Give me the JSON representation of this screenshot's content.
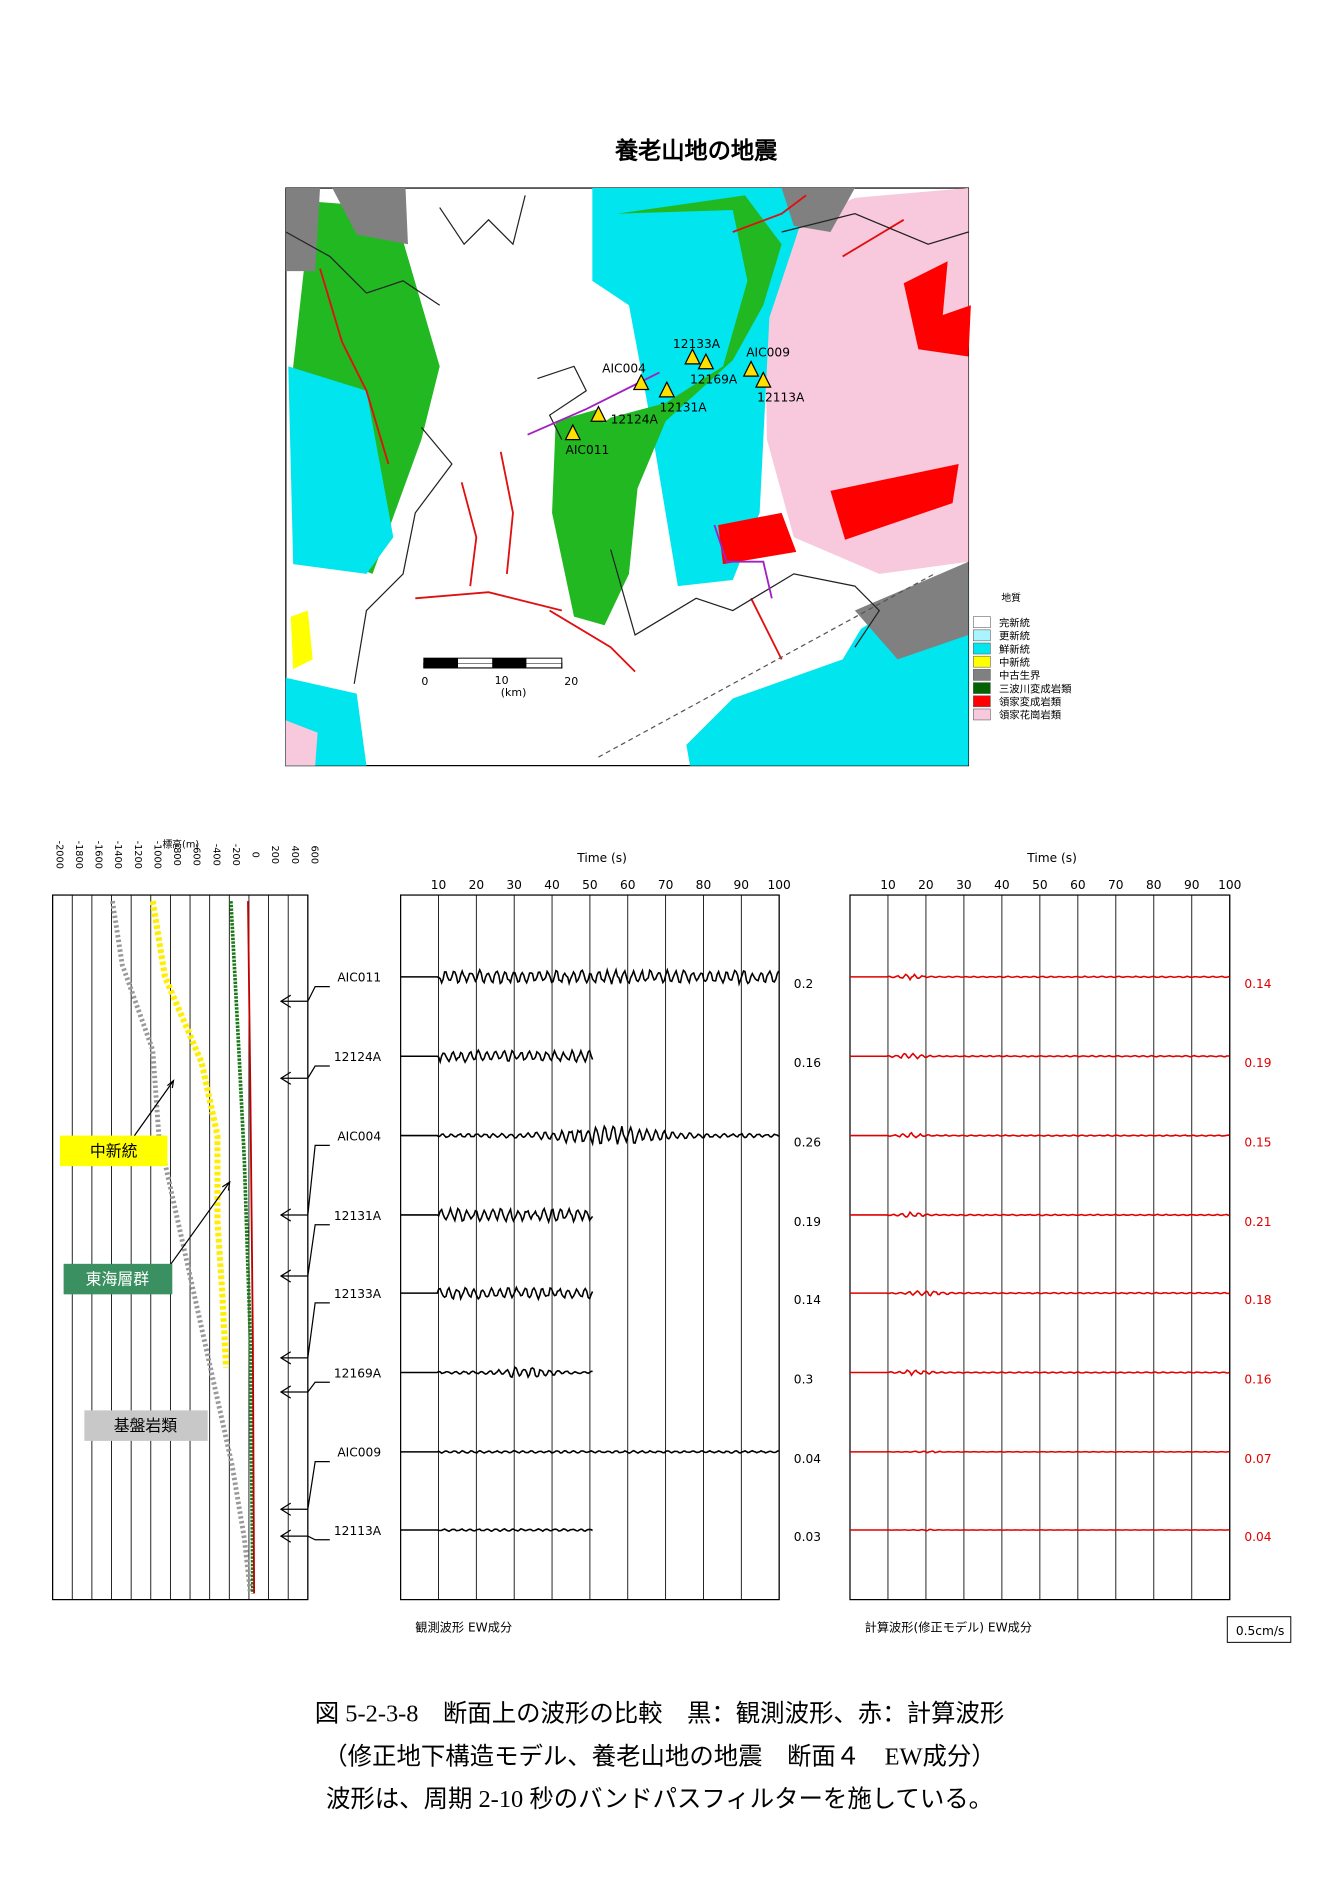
{
  "title": "養老山地の地震",
  "map": {
    "stations": [
      "AIC011",
      "12124A",
      "AIC004",
      "12131A",
      "12133A",
      "12169A",
      "AIC009",
      "12113A"
    ],
    "scale_labels": [
      "0",
      "10",
      "(km)",
      "20"
    ],
    "legend": {
      "title": "地質",
      "items": [
        "完新統",
        "更新統",
        "鮮新統",
        "中新統",
        "中古生界",
        "三波川変成岩類",
        "領家変成岩類",
        "領家花崗岩類"
      ]
    }
  },
  "depth_panel": {
    "axis_label": "標高(m)",
    "ticks": [
      -2000,
      -1800,
      -1600,
      -1400,
      -1200,
      -1000,
      -800,
      -600,
      -400,
      -200,
      0,
      200,
      400,
      600
    ],
    "labels": [
      "中新統",
      "東海層群",
      "基盤岩類"
    ]
  },
  "stations": [
    "AIC011",
    "12124A",
    "AIC004",
    "12131A",
    "12133A",
    "12169A",
    "AIC009",
    "12113A"
  ],
  "observed": {
    "axis_label": "Time (s)",
    "ticks": [
      10,
      20,
      30,
      40,
      50,
      60,
      70,
      80,
      90,
      100
    ],
    "amplitudes": [
      "0.2",
      "0.16",
      "0.26",
      "0.19",
      "0.14",
      "0.3",
      "0.04",
      "0.03"
    ],
    "caption": "観測波形 EW成分"
  },
  "computed": {
    "axis_label": "Time (s)",
    "ticks": [
      10,
      20,
      30,
      40,
      50,
      60,
      70,
      80,
      90,
      100
    ],
    "amplitudes": [
      "0.14",
      "0.19",
      "0.15",
      "0.21",
      "0.18",
      "0.16",
      "0.07",
      "0.04"
    ],
    "caption": "計算波形(修正モデル) EW成分",
    "scale": "0.5cm/s"
  },
  "caption": [
    "図 5-2-3-8　断面上の波形の比較　黒：観測波形、赤：計算波形",
    "（修正地下構造モデル、養老山地の地震　断面４　EW成分）",
    "波形は、周期 2-10 秒のバンドパスフィルターを施している。"
  ]
}
